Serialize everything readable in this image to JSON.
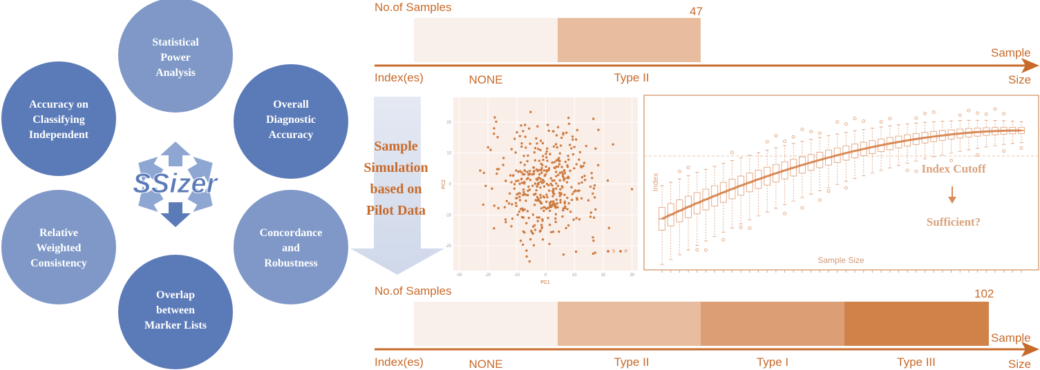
{
  "ssizer": {
    "title": "SSizer",
    "circles": [
      {
        "lines": [
          "Statistical",
          "Power",
          "Analysis"
        ],
        "color": "#7f98c8"
      },
      {
        "lines": [
          "Overall",
          "Diagnostic",
          "Accuracy"
        ],
        "color": "#5b7ab8"
      },
      {
        "lines": [
          "Concordance",
          "and",
          "Robustness"
        ],
        "color": "#7f98c8"
      },
      {
        "lines": [
          "Overlap",
          "between",
          "Marker Lists"
        ],
        "color": "#5b7ab8"
      },
      {
        "lines": [
          "Relative",
          "Weighted",
          "Consistency"
        ],
        "color": "#7f98c8"
      },
      {
        "lines": [
          "Accuracy on",
          "Classifying",
          "Independent"
        ],
        "color": "#5b7ab8"
      }
    ]
  },
  "top_bar": {
    "samples_label": "No.of Samples",
    "count": "47",
    "index_label": "Index(es)",
    "axis_label_1": "Sample",
    "axis_label_2": "Size",
    "segments": [
      "NONE",
      "Type II"
    ]
  },
  "bottom_bar": {
    "samples_label": "No.of Samples",
    "count": "102",
    "index_label": "Index(es)",
    "axis_label_1": "Sample",
    "axis_label_2": "Size",
    "segments": [
      "NONE",
      "Type II",
      "Type I",
      "Type III"
    ]
  },
  "segment_colors": [
    "#faf0eb",
    "#e8bd9f",
    "#dc9f75",
    "#d08249"
  ],
  "accent": "#c86a2a",
  "simulation_text": [
    "Sample",
    "Simulation",
    "based on",
    "Pilot Data"
  ],
  "scatter": {
    "xlabel": "PC1",
    "ylabel": "PC2",
    "xticks": [
      "-30",
      "-20",
      "-10",
      "0",
      "10",
      "20",
      "30"
    ],
    "yticks": [
      "20",
      "10",
      "0",
      "-10",
      "-20"
    ],
    "legend": [
      "S",
      "P"
    ]
  },
  "boxplot": {
    "ylabel": "Index",
    "xlabel": "Sample Size",
    "cutoff_label": "Index Cutoff",
    "sufficient_label": "Sufficient?"
  }
}
